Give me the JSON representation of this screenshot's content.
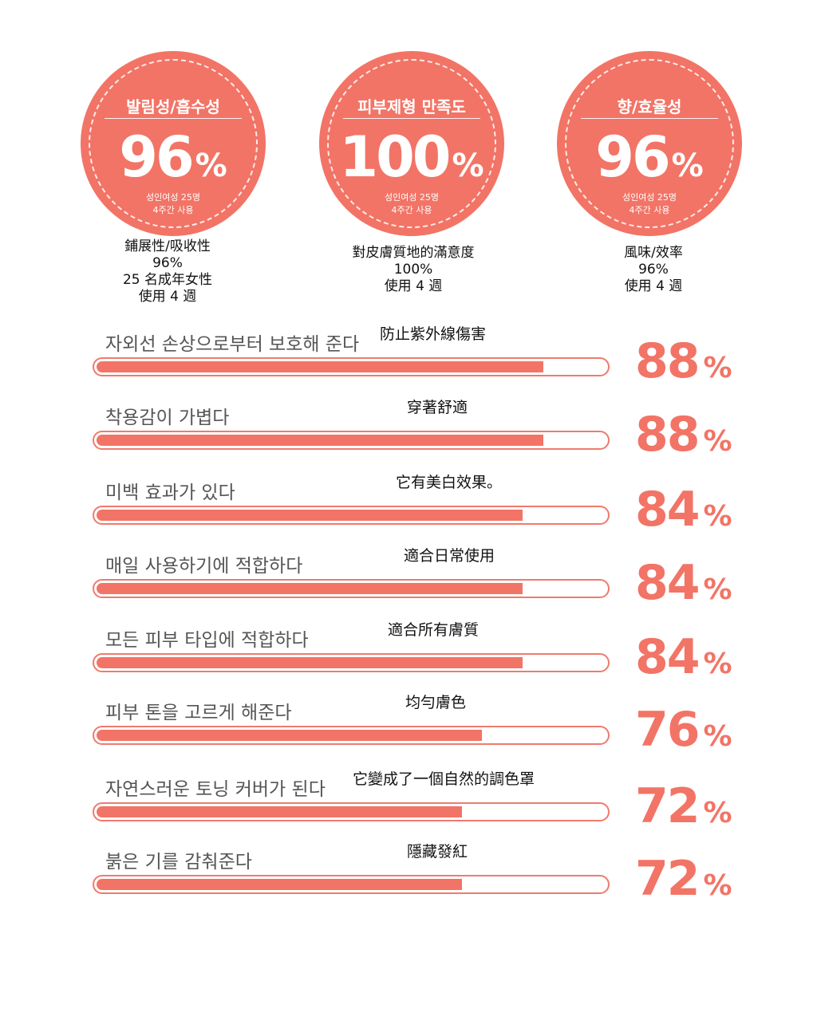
{
  "circles": [
    {
      "title": "발림성/흡수성",
      "value": "96",
      "pct": "%",
      "note1": "성인여성 25명",
      "note2": "4주간 사용",
      "caption": [
        "鋪展性/吸收性",
        "96%",
        "25 名成年女性",
        "使用 4 週"
      ]
    },
    {
      "title": "피부제형 만족도",
      "value": "100",
      "pct": "%",
      "note1": "성인여성 25명",
      "note2": "4주간 사용",
      "caption": [
        "對皮膚質地的滿意度",
        "100%",
        "使用 4 週"
      ]
    },
    {
      "title": "향/효율성",
      "value": "96",
      "pct": "%",
      "note1": "성인여성 25명",
      "note2": "4주간 사용",
      "caption": [
        "風味/效率",
        "96%",
        "使用 4 週"
      ]
    }
  ],
  "chart_data": {
    "type": "bar",
    "orientation": "horizontal",
    "xlim": [
      0,
      100
    ],
    "unit": "%",
    "categories_ko": [
      "자외선 손상으로부터 보호해 준다",
      "착용감이 가볍다",
      "미백 효과가 있다",
      "매일 사용하기에 적합하다",
      "모든 피부 타입에 적합하다",
      "피부 톤을 고르게 해준다",
      "자연스러운 토닝 커버가 된다",
      "붉은 기를 감춰준다"
    ],
    "categories_zh": [
      "防止紫外線傷害",
      "穿著舒適",
      "它有美白效果。",
      "適合日常使用",
      "適合所有膚質",
      "均勻膚色",
      "它變成了一個自然的調色罩",
      "隱藏發紅"
    ],
    "values": [
      88,
      88,
      84,
      84,
      84,
      76,
      72,
      72
    ]
  },
  "colors": {
    "accent": "#f27466",
    "track_border": "#ef7a6d"
  }
}
